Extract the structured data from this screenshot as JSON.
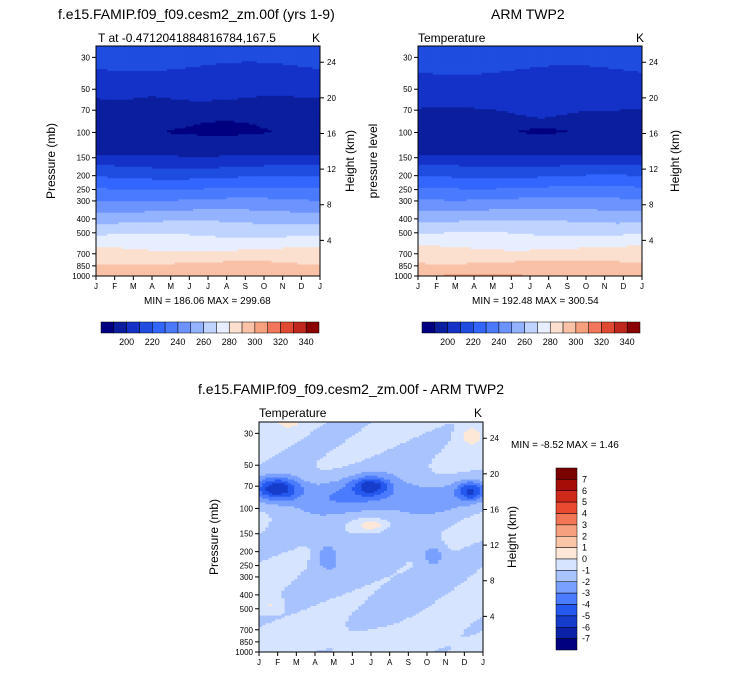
{
  "chart_data": [
    {
      "type": "heatmap",
      "title": "f.e15.FAMIP.f09_f09.cesm2_zm.00f (yrs 1-9)",
      "subtitle_left": "T at -0.4712041884816784,167.5",
      "subtitle_right": "K",
      "ylabel": "Pressure (mb)",
      "ylabel_right": "Height (km)",
      "months": [
        "J",
        "F",
        "M",
        "A",
        "M",
        "J",
        "J",
        "A",
        "S",
        "O",
        "N",
        "D",
        "J"
      ],
      "pressure_ticks": [
        "30",
        "50",
        "70",
        "100",
        "150",
        "200",
        "250",
        "300",
        "400",
        "500",
        "700",
        "850",
        "1000"
      ],
      "pressure_values": [
        30,
        50,
        70,
        100,
        150,
        200,
        250,
        300,
        400,
        500,
        700,
        850,
        1000
      ],
      "height_ticks": [
        "24",
        "20",
        "16",
        "12",
        "8",
        "4"
      ],
      "height_values": [
        24,
        20,
        16,
        12,
        8,
        4
      ],
      "stats": "MIN = 186.06 MAX = 299.68",
      "temperature_profile": [
        [
          30,
          213
        ],
        [
          50,
          203
        ],
        [
          70,
          193
        ],
        [
          100,
          190
        ],
        [
          150,
          202
        ],
        [
          200,
          218
        ],
        [
          250,
          231
        ],
        [
          300,
          241
        ],
        [
          400,
          257
        ],
        [
          500,
          268
        ],
        [
          700,
          283
        ],
        [
          850,
          292
        ],
        [
          1000,
          299
        ]
      ],
      "cold_core_top": [
        [
          0,
          58
        ],
        [
          0.08,
          60
        ],
        [
          0.25,
          56
        ],
        [
          0.45,
          61
        ],
        [
          0.6,
          59
        ],
        [
          0.8,
          55
        ],
        [
          1,
          58
        ]
      ],
      "cold_core_bottom": [
        [
          0,
          155
        ],
        [
          0.25,
          158
        ],
        [
          0.5,
          156
        ],
        [
          0.75,
          158
        ],
        [
          1,
          155
        ]
      ]
    },
    {
      "type": "heatmap",
      "title": "ARM TWP2",
      "subtitle_left": "Temperature",
      "subtitle_right": "K",
      "ylabel": "pressure level",
      "ylabel_right": "Height (km)",
      "months": [
        "J",
        "F",
        "M",
        "A",
        "M",
        "J",
        "J",
        "A",
        "S",
        "O",
        "N",
        "D",
        "J"
      ],
      "pressure_ticks": [
        "30",
        "50",
        "70",
        "100",
        "150",
        "200",
        "250",
        "300",
        "400",
        "500",
        "700",
        "850",
        "1000"
      ],
      "pressure_values": [
        30,
        50,
        70,
        100,
        150,
        200,
        250,
        300,
        400,
        500,
        700,
        850,
        1000
      ],
      "height_ticks": [
        "24",
        "20",
        "16",
        "12",
        "8",
        "4"
      ],
      "height_values": [
        24,
        20,
        16,
        12,
        8,
        4
      ],
      "stats": "MIN = 192.48 MAX = 300.54",
      "temperature_profile": [
        [
          30,
          214
        ],
        [
          50,
          204
        ],
        [
          70,
          194
        ],
        [
          100,
          191
        ],
        [
          150,
          203
        ],
        [
          200,
          219
        ],
        [
          250,
          232
        ],
        [
          300,
          242
        ],
        [
          400,
          258
        ],
        [
          500,
          269
        ],
        [
          700,
          284
        ],
        [
          850,
          293
        ],
        [
          1000,
          300
        ]
      ],
      "cold_core_top": [
        [
          0,
          68
        ],
        [
          0.15,
          66
        ],
        [
          0.35,
          70
        ],
        [
          0.55,
          80
        ],
        [
          0.72,
          72
        ],
        [
          0.9,
          70
        ],
        [
          1,
          68
        ]
      ],
      "cold_core_bottom": [
        [
          0,
          155
        ],
        [
          0.25,
          157
        ],
        [
          0.5,
          155
        ],
        [
          0.75,
          157
        ],
        [
          1,
          155
        ]
      ]
    },
    {
      "type": "heatmap",
      "title": "f.e15.FAMIP.f09_f09.cesm2_zm.00f - ARM TWP2",
      "subtitle_left": "Temperature",
      "subtitle_right": "K",
      "ylabel": "Pressure (mb)",
      "ylabel_right": "Height (km)",
      "months": [
        "J",
        "F",
        "M",
        "A",
        "M",
        "J",
        "J",
        "A",
        "S",
        "O",
        "N",
        "D",
        "J"
      ],
      "pressure_ticks": [
        "30",
        "50",
        "70",
        "100",
        "150",
        "200",
        "250",
        "300",
        "400",
        "500",
        "700",
        "850",
        "1000"
      ],
      "pressure_values": [
        30,
        50,
        70,
        100,
        150,
        200,
        250,
        300,
        400,
        500,
        700,
        850,
        1000
      ],
      "height_ticks": [
        "24",
        "20",
        "16",
        "12",
        "8",
        "4"
      ],
      "height_values": [
        24,
        20,
        16,
        12,
        8,
        4
      ],
      "stats": "MIN = -8.52 MAX =  1.46",
      "diff_levels": [
        -7,
        -6,
        -5,
        -4,
        -3,
        -2,
        -1,
        0,
        1,
        2,
        3,
        4,
        5,
        6,
        7
      ],
      "blobs": [
        {
          "x": 0.5,
          "y": 0.5,
          "rx": 0.5,
          "ry": 0.5,
          "v": -1.5
        },
        {
          "x": 0.5,
          "y": 0.32,
          "rx": 0.5,
          "ry": 0.08,
          "v": -3.2
        },
        {
          "x": 0.08,
          "y": 0.29,
          "rx": 0.1,
          "ry": 0.05,
          "v": -6.5
        },
        {
          "x": 0.5,
          "y": 0.28,
          "rx": 0.08,
          "ry": 0.04,
          "v": -6.0
        },
        {
          "x": 0.95,
          "y": 0.3,
          "rx": 0.06,
          "ry": 0.04,
          "v": -5.5
        },
        {
          "x": 0.3,
          "y": 0.58,
          "rx": 0.05,
          "ry": 0.06,
          "v": -3.0
        },
        {
          "x": 0.78,
          "y": 0.58,
          "rx": 0.05,
          "ry": 0.05,
          "v": -3.0
        },
        {
          "x": 0.5,
          "y": 0.45,
          "rx": 0.08,
          "ry": 0.03,
          "v": 0.5
        },
        {
          "x": 0.05,
          "y": 0.8,
          "rx": 0.05,
          "ry": 0.03,
          "v": 0.4
        },
        {
          "x": 0.95,
          "y": 0.05,
          "rx": 0.05,
          "ry": 0.05,
          "v": 0.6
        },
        {
          "x": 0.13,
          "y": 0.0,
          "rx": 0.05,
          "ry": 0.02,
          "v": 0.4
        },
        {
          "x": 0.5,
          "y": 0.95,
          "rx": 0.4,
          "ry": 0.06,
          "v": -0.5
        }
      ]
    }
  ],
  "colorbars": [
    {
      "labels": [
        "200",
        "220",
        "240",
        "260",
        "280",
        "300",
        "320",
        "340"
      ]
    },
    {
      "labels": [
        "200",
        "220",
        "240",
        "260",
        "280",
        "300",
        "320",
        "340"
      ]
    },
    {
      "labels": [
        "7",
        "6",
        "5",
        "4",
        "3",
        "2",
        "1",
        "0",
        "-1",
        "-2",
        "-3",
        "-4",
        "-5",
        "-6",
        "-7"
      ]
    }
  ],
  "palette": {
    "temp_levels": [
      190,
      200,
      210,
      220,
      230,
      240,
      250,
      260,
      270,
      280,
      290,
      300,
      310,
      320,
      330,
      340
    ],
    "temp_colors": [
      "#000080",
      "#0a1e9e",
      "#1432c8",
      "#1f4de0",
      "#3366ff",
      "#4a7aff",
      "#6c93ff",
      "#93b2ff",
      "#bfd3ff",
      "#e6eeff",
      "#fbe0cf",
      "#f9c2a6",
      "#f6a07e",
      "#f2775a",
      "#e04a32",
      "#c0281e",
      "#8b0000"
    ],
    "diff_colors": [
      "#000080",
      "#0a22a8",
      "#163ccc",
      "#2558ee",
      "#4b7bff",
      "#7aa0ff",
      "#a9c3ff",
      "#d6e4ff",
      "#fde8d8",
      "#fbc6a8",
      "#f7a07e",
      "#f27656",
      "#e94a30",
      "#cf2a19",
      "#a60d06",
      "#7a0000"
    ]
  }
}
